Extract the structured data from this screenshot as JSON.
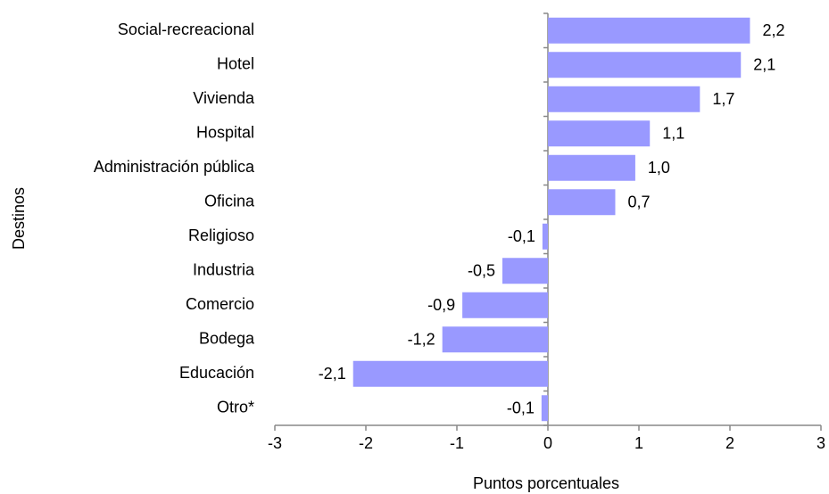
{
  "chart_data": {
    "type": "barh",
    "categories": [
      "Social-recreacional",
      "Hotel",
      "Vivienda",
      "Hospital",
      "Administración pública",
      "Oficina",
      "Religioso",
      "Industria",
      "Comercio",
      "Bodega",
      "Educación",
      "Otro*"
    ],
    "values": [
      2.22,
      2.12,
      1.67,
      1.12,
      0.96,
      0.74,
      -0.06,
      -0.5,
      -0.94,
      -1.16,
      -2.14,
      -0.07
    ],
    "value_labels": [
      "2,2",
      "2,1",
      "1,7",
      "1,1",
      "1,0",
      "0,7",
      "-0,1",
      "-0,5",
      "-0,9",
      "-1,2",
      "-2,1",
      "-0,1"
    ],
    "color": "#9999ff",
    "xlim": [
      -3,
      3
    ],
    "xticks": [
      -3,
      -2,
      -1,
      0,
      1,
      2,
      3
    ],
    "xlabel": "Puntos porcentuales",
    "ylabel": "Destinos"
  }
}
